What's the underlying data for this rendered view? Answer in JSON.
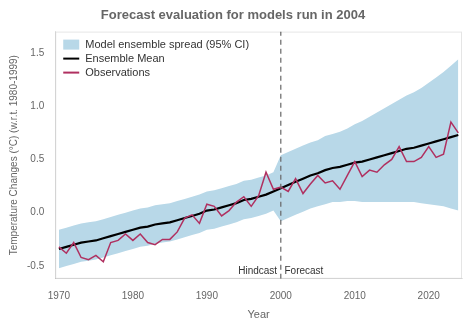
{
  "chart_data": {
    "type": "line",
    "title": "Forecast evaluation for models run in 2004",
    "xlabel": "Year",
    "ylabel": "Temperature Changes (°C) (w.r.t. 1980-1999)",
    "x": [
      1970,
      1971,
      1972,
      1973,
      1974,
      1975,
      1976,
      1977,
      1978,
      1979,
      1980,
      1981,
      1982,
      1983,
      1984,
      1985,
      1986,
      1987,
      1988,
      1989,
      1990,
      1991,
      1992,
      1993,
      1994,
      1995,
      1996,
      1997,
      1998,
      1999,
      2000,
      2001,
      2002,
      2003,
      2004,
      2005,
      2006,
      2007,
      2008,
      2009,
      2010,
      2011,
      2012,
      2013,
      2014,
      2015,
      2016,
      2017,
      2018,
      2019,
      2020,
      2021,
      2022,
      2023,
      2024
    ],
    "series": [
      {
        "name": "Model ensemble spread (95% CI)",
        "type": "band",
        "color": "#b8d8e8",
        "lower": [
          -0.52,
          -0.5,
          -0.48,
          -0.46,
          -0.45,
          -0.44,
          -0.42,
          -0.4,
          -0.38,
          -0.36,
          -0.34,
          -0.32,
          -0.31,
          -0.29,
          -0.28,
          -0.27,
          -0.25,
          -0.23,
          -0.21,
          -0.19,
          -0.16,
          -0.15,
          -0.13,
          -0.11,
          -0.09,
          -0.06,
          -0.05,
          -0.03,
          -0.01,
          0.02,
          -0.08,
          -0.05,
          -0.02,
          0.01,
          0.04,
          0.06,
          0.08,
          0.1,
          0.1,
          0.11,
          0.11,
          0.1,
          0.1,
          0.1,
          0.1,
          0.1,
          0.1,
          0.1,
          0.1,
          0.09,
          0.08,
          0.07,
          0.06,
          0.04,
          0.02
        ],
        "upper": [
          -0.16,
          -0.14,
          -0.12,
          -0.1,
          -0.09,
          -0.08,
          -0.06,
          -0.04,
          -0.02,
          0.0,
          0.02,
          0.04,
          0.05,
          0.07,
          0.08,
          0.09,
          0.11,
          0.13,
          0.15,
          0.17,
          0.2,
          0.21,
          0.23,
          0.25,
          0.27,
          0.3,
          0.31,
          0.33,
          0.35,
          0.38,
          0.54,
          0.57,
          0.6,
          0.63,
          0.66,
          0.68,
          0.72,
          0.74,
          0.76,
          0.79,
          0.83,
          0.86,
          0.9,
          0.94,
          0.98,
          1.02,
          1.06,
          1.1,
          1.13,
          1.17,
          1.22,
          1.27,
          1.32,
          1.38,
          1.44
        ]
      },
      {
        "name": "Ensemble Mean",
        "type": "line",
        "color": "#000000",
        "values": [
          -0.34,
          -0.32,
          -0.3,
          -0.28,
          -0.27,
          -0.26,
          -0.24,
          -0.22,
          -0.2,
          -0.18,
          -0.16,
          -0.14,
          -0.13,
          -0.11,
          -0.1,
          -0.09,
          -0.07,
          -0.05,
          -0.03,
          -0.01,
          0.02,
          0.03,
          0.05,
          0.07,
          0.09,
          0.12,
          0.13,
          0.15,
          0.17,
          0.2,
          0.23,
          0.26,
          0.29,
          0.32,
          0.35,
          0.37,
          0.4,
          0.42,
          0.43,
          0.45,
          0.47,
          0.48,
          0.5,
          0.52,
          0.54,
          0.56,
          0.58,
          0.6,
          0.61,
          0.63,
          0.65,
          0.67,
          0.69,
          0.71,
          0.73
        ]
      },
      {
        "name": "Observations",
        "type": "line",
        "color": "#b03060",
        "values": [
          -0.32,
          -0.38,
          -0.28,
          -0.42,
          -0.44,
          -0.4,
          -0.46,
          -0.28,
          -0.26,
          -0.2,
          -0.26,
          -0.2,
          -0.28,
          -0.3,
          -0.25,
          -0.25,
          -0.18,
          -0.05,
          -0.02,
          -0.1,
          0.08,
          0.06,
          -0.03,
          0.02,
          0.1,
          0.15,
          0.06,
          0.16,
          0.38,
          0.22,
          0.24,
          0.2,
          0.32,
          0.18,
          0.27,
          0.35,
          0.28,
          0.3,
          0.22,
          0.35,
          0.48,
          0.34,
          0.4,
          0.38,
          0.45,
          0.5,
          0.62,
          0.48,
          0.48,
          0.52,
          0.62,
          0.52,
          0.55,
          0.85,
          0.75
        ]
      }
    ],
    "annotations": [
      {
        "type": "vline",
        "x": 2000,
        "color": "#666666",
        "line_style": "dashed"
      },
      {
        "text": "Hindcast",
        "x": 1999.5,
        "y": -0.6
      },
      {
        "text": "Forecast",
        "x": 2000.5,
        "y": -0.6
      }
    ],
    "xlim": [
      1969.5,
      2024.5
    ],
    "ylim": [
      -0.62,
      1.7
    ],
    "xticks": [
      1970,
      1980,
      1990,
      2000,
      2010,
      2020
    ],
    "yticks": [
      -0.5,
      {
        "value": 0,
        "label": "0.0"
      },
      0.5,
      {
        "value": 1,
        "label": "1.0"
      },
      1.5
    ],
    "grid": false,
    "legend": "upper left"
  }
}
